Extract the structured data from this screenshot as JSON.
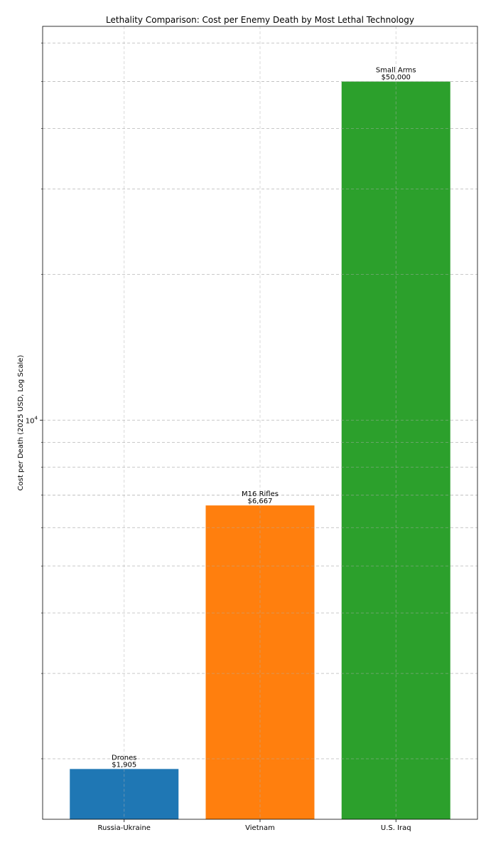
{
  "chart_data": {
    "type": "bar",
    "title": "Lethality Comparison: Cost per Enemy Death by Most Lethal Technology",
    "xlabel": "",
    "ylabel": "Cost per Death (2025 USD, Log Scale)",
    "yscale": "log",
    "ylim": [
      1500,
      65000
    ],
    "grid": true,
    "legend": "none",
    "categories": [
      "Russia-Ukraine",
      "Vietnam",
      "U.S. Iraq"
    ],
    "values": [
      1905,
      6667,
      50000
    ],
    "bar_labels": [
      "Drones",
      "M16 Rifles",
      "Small Arms"
    ],
    "value_labels": [
      "$1,905",
      "$6,667",
      "$50,000"
    ],
    "colors": [
      "#1f77b4",
      "#ff7f0e",
      "#2ca02c"
    ],
    "y_major_ticks": [
      10000
    ],
    "y_major_tick_labels": [
      {
        "base": "10",
        "exp": "4"
      }
    ],
    "y_minor_ticks": [
      2000,
      3000,
      4000,
      5000,
      6000,
      7000,
      8000,
      9000,
      20000,
      30000,
      40000,
      50000,
      60000
    ]
  }
}
